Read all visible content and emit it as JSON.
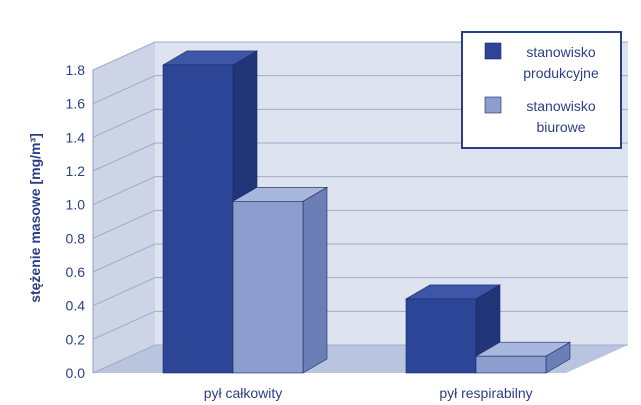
{
  "chart_data": {
    "type": "bar",
    "title": "",
    "xlabel": "",
    "ylabel": "stężenie masowe [mg/m³]",
    "ylim": [
      0,
      1.8
    ],
    "yticks": [
      "0.0",
      "0.2",
      "0.4",
      "0.6",
      "0.8",
      "1.0",
      "1.2",
      "1.4",
      "1.6",
      "1.8"
    ],
    "categories": [
      "pył całkowity",
      "pył respirabilny"
    ],
    "series": [
      {
        "name": "stanowisko produkcyjne",
        "legend_lines": [
          "stanowisko",
          "produkcyjne"
        ],
        "values": [
          1.83,
          0.44
        ]
      },
      {
        "name": "stanowisko biurowe",
        "legend_lines": [
          "stanowisko",
          "biurowe"
        ],
        "values": [
          1.02,
          0.1
        ]
      }
    ],
    "grid": true,
    "legend_position": "top-right",
    "style": "3d"
  },
  "colors": {
    "background": "#ffffff",
    "wall": "#dde3ef",
    "wall_side": "#ccd4e6",
    "floor": "#b9c4de",
    "grid": "#9eabcb",
    "text": "#2b3f86",
    "legend_border": "#2b3f86",
    "series_front": [
      "#2c4597",
      "#8d9dce"
    ],
    "series_top": [
      "#3d56a8",
      "#a9b6dd"
    ],
    "series_side": [
      "#213679",
      "#6c7eb6"
    ]
  }
}
